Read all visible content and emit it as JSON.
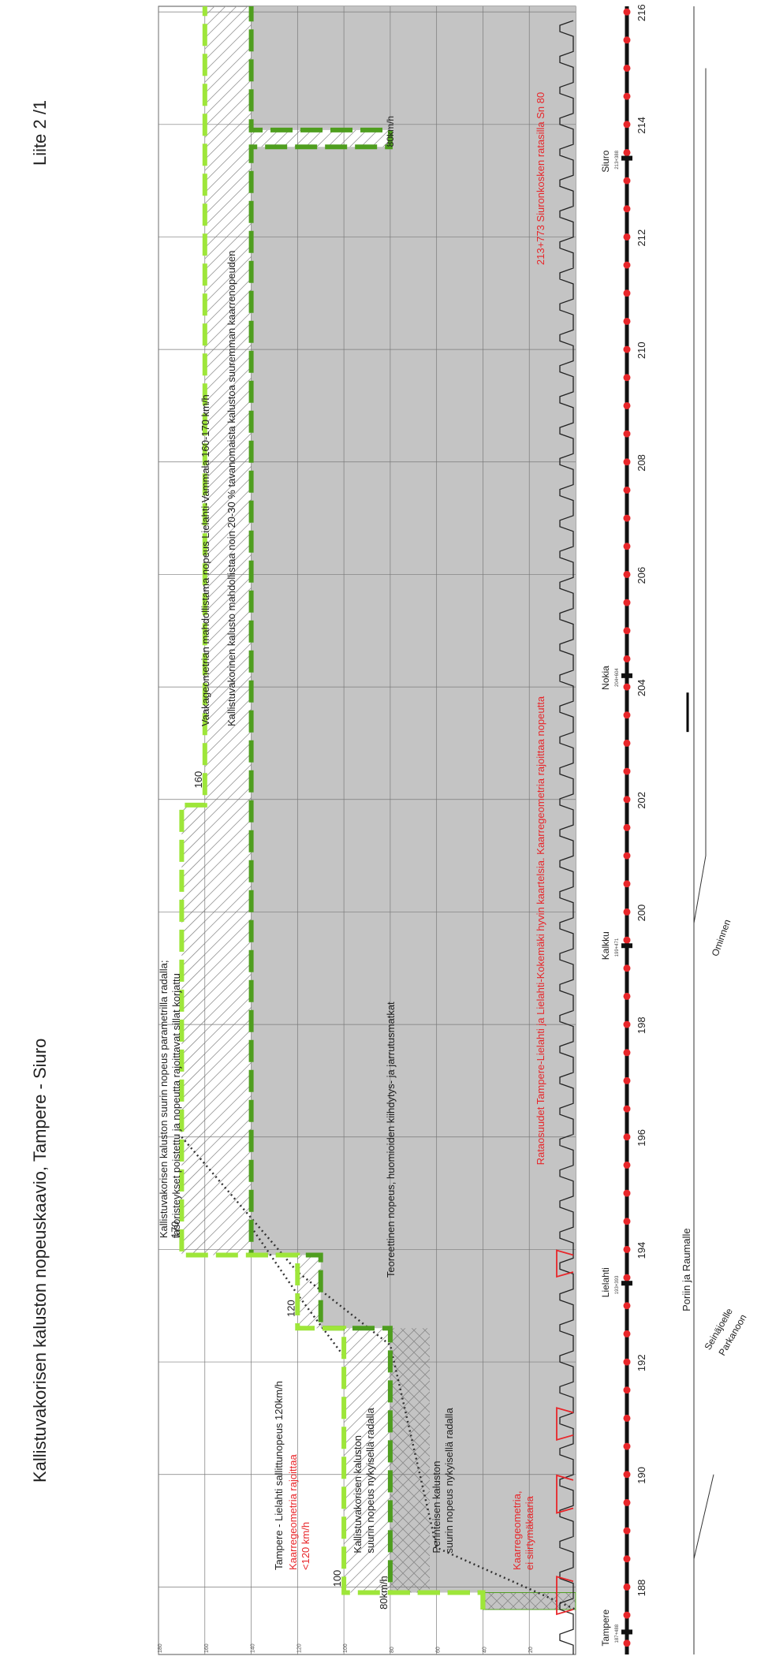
{
  "page": {
    "title": "Kallistuvakorisen kaluston nopeuskaavio, Tampere - Siuro",
    "appendix": "Liite 2 /1"
  },
  "colors": {
    "background": "#ffffff",
    "grey_area": "#c4c4c4",
    "grid": "#7a7a7a",
    "tilting_line": "#9ee63a",
    "conventional_line": "#4f9e1f",
    "red_text": "#e8262a",
    "track": "#111111",
    "km_dot": "#e8262a"
  },
  "chart_data": {
    "type": "line",
    "x_axis": {
      "range": [
        186.8,
        216.1
      ],
      "ticks": [
        188,
        190,
        192,
        194,
        196,
        198,
        200,
        202,
        204,
        206,
        208,
        210,
        212,
        214,
        216
      ]
    },
    "speed_axis": {
      "range": [
        0,
        180
      ],
      "gridlines": [
        20,
        40,
        60,
        80,
        100,
        120,
        140,
        160,
        180
      ]
    },
    "series": [
      {
        "key": "tilting",
        "points": [
          [
            187.6,
            40
          ],
          [
            187.9,
            40
          ],
          [
            187.9,
            100
          ],
          [
            192.6,
            100
          ],
          [
            192.6,
            120
          ],
          [
            193.9,
            120
          ],
          [
            193.9,
            170
          ],
          [
            201.9,
            170
          ],
          [
            201.9,
            160
          ],
          [
            216.1,
            160
          ]
        ]
      },
      {
        "key": "conventional",
        "points": [
          [
            187.6,
            40
          ],
          [
            187.9,
            40
          ],
          [
            187.9,
            80
          ],
          [
            192.6,
            80
          ],
          [
            192.6,
            110
          ],
          [
            193.9,
            110
          ],
          [
            193.9,
            140
          ],
          [
            213.6,
            140
          ],
          [
            213.6,
            80
          ],
          [
            213.9,
            80
          ],
          [
            213.9,
            140
          ],
          [
            216.1,
            140
          ]
        ]
      }
    ],
    "stations": [
      {
        "name": "Tampere",
        "km": 187.2,
        "sub": "187+488"
      },
      {
        "name": "Lielahti",
        "km": 193.4,
        "sub": "193+393"
      },
      {
        "name": "Kalkku",
        "km": 199.4,
        "sub": "199+471"
      },
      {
        "name": "Nokia",
        "km": 204.2,
        "sub": "204+604"
      },
      {
        "name": "Siuro",
        "km": 213.4,
        "sub": "213+388"
      }
    ],
    "labels": {
      "v170": "170",
      "v160": "160",
      "v120": "120",
      "v100": "100",
      "v80_left": "80km/h",
      "v80_right": "80km/h"
    },
    "annotations": {
      "tilting_max": [
        "Kallistuvakorisen kaluston suurin nopeus parametrilla radalla;",
        "tasoristeykset poistettu ja nopeutta rajoittavat sillat korjattu"
      ],
      "theoretical": "Teoreettinen nopeus, huomioiden kiihdytys- ja jarrutusmatkat",
      "tampere_lielahti": "Tampere - Lielahti sallittunopeus 120km/h",
      "curve_limit_1": [
        "Kaarregeometria rajoittaa",
        "<120 km/h"
      ],
      "tilting_current": [
        "Kallistuvakorisen kaluston",
        "suurin nopeus nykyisellä radalla"
      ],
      "conventional_current": [
        "Perinteisen kaluston",
        "suurin nopeus nykyisellä radalla"
      ],
      "curve_limit_2": [
        "Kaarregeometria,",
        "ei siirtymäkaaria"
      ],
      "horizontal_1": "Vaakageometrian mahdollistama nopeus Lielahti-Vammala 160-170 km/h",
      "horizontal_2": "Kallistuvakorinen kalusto mahdollistaa noin 20-30 % tavanomaista kalustoa suuremman kaarrenopeuden",
      "speed_limits": "Rataosuudet Tampere-Lielahti ja Lielahti-Kokemäki hyvin kaartelsia. Kaarregeometria rajoittaa nopeutta",
      "siuro_bridge": "213+773 Siuronkosken ratasilla  Sn 80"
    },
    "map_labels": {
      "pori": "Poriin ja Raumalle",
      "seinajoelle": "Seinäjoelle",
      "parkanoon": "Parkanoon",
      "ominnen": "Ominnen"
    }
  }
}
